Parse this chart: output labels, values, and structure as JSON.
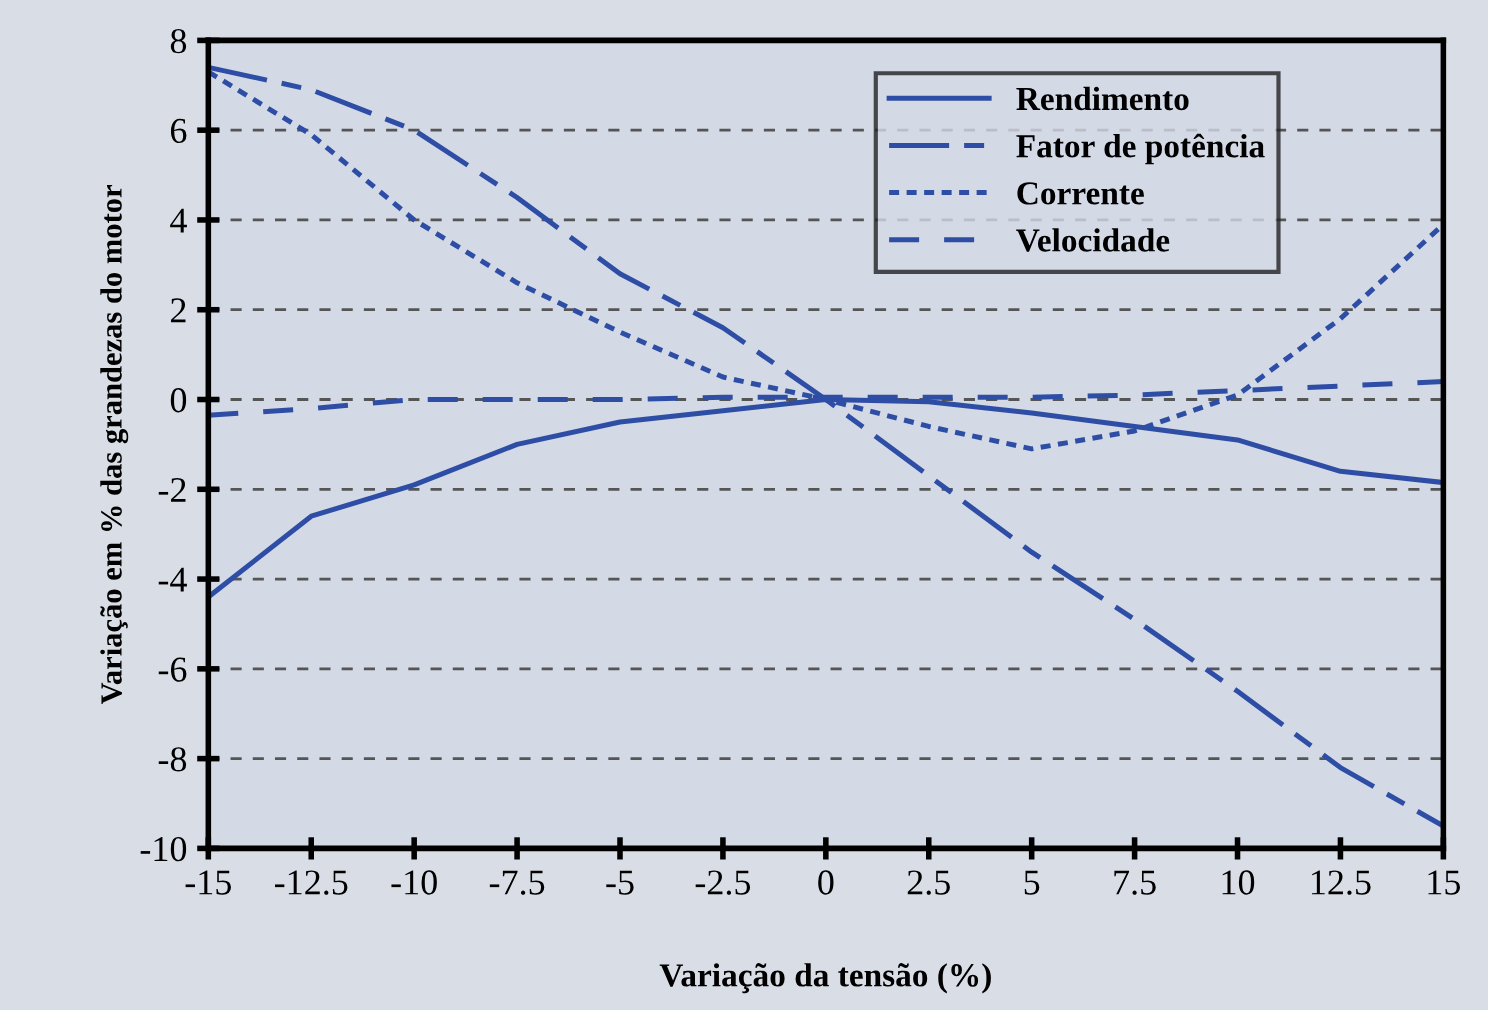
{
  "chart_data": {
    "type": "line",
    "xlabel": "Variação da tensão (%)",
    "ylabel": "Variação em % das grandezas do motor",
    "x": [
      -15,
      -12.5,
      -10,
      -7.5,
      -5,
      -2.5,
      0,
      2.5,
      5,
      7.5,
      10,
      12.5,
      15
    ],
    "series": [
      {
        "name": "Rendimento",
        "color": "#2e4ea6",
        "line_style": "solid",
        "values": [
          -4.4,
          -2.6,
          -1.9,
          -1.0,
          -0.5,
          -0.25,
          0,
          -0.05,
          -0.3,
          -0.6,
          -0.9,
          -1.6,
          -1.85
        ]
      },
      {
        "name": "Fator de potência",
        "color": "#2e4ea6",
        "line_style": "dashdot",
        "values": [
          7.4,
          6.9,
          6.0,
          4.5,
          2.8,
          1.6,
          0,
          -1.7,
          -3.4,
          -4.9,
          -6.5,
          -8.2,
          -9.5
        ]
      },
      {
        "name": "Corrente",
        "color": "#2e4ea6",
        "line_style": "dotted",
        "values": [
          7.3,
          5.9,
          4.0,
          2.6,
          1.5,
          0.5,
          0,
          -0.6,
          -1.1,
          -0.7,
          0.1,
          1.8,
          3.9
        ]
      },
      {
        "name": "Velocidade",
        "color": "#2e4ea6",
        "line_style": "dashed",
        "values": [
          -0.35,
          -0.2,
          0,
          0,
          0,
          0.05,
          0.05,
          0.05,
          0.05,
          0.1,
          0.2,
          0.3,
          0.4
        ]
      }
    ],
    "xlim": [
      -15,
      15
    ],
    "xticks": [
      -15,
      -12.5,
      -10,
      -7.5,
      -5,
      -2.5,
      0,
      2.5,
      5,
      7.5,
      10,
      12.5,
      15
    ],
    "ylim": [
      -10,
      8
    ],
    "yticks": [
      -10,
      -8,
      -6,
      -4,
      -2,
      0,
      2,
      4,
      6,
      8
    ],
    "grid": "y",
    "legend": "top right",
    "marker": "none"
  }
}
